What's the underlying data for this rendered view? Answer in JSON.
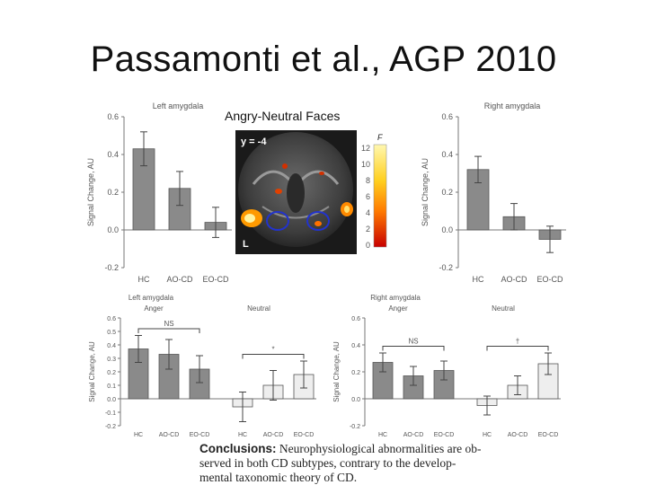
{
  "slide": {
    "title": "Passamonti et al., AGP 2010",
    "subtitle": "Angry-Neutral Faces",
    "conclusion_label": "Conclusions:",
    "conclusion_lines": [
      "Neurophysiological abnormalities are ob-",
      "served in both CD subtypes, contrary to the develop-",
      "mental taxonomic theory of CD."
    ]
  },
  "brain_image": {
    "slice_label": "y = -4",
    "side_label": "L",
    "colorbar_label": "F",
    "colorbar_ticks": [
      "12",
      "10",
      "8",
      "6",
      "4",
      "2",
      "0"
    ]
  },
  "chart_data": [
    {
      "type": "bar",
      "title": "Left amygdala",
      "ylabel": "Signal Change, AU",
      "categories": [
        "HC",
        "AO-CD",
        "EO-CD"
      ],
      "values": [
        0.43,
        0.22,
        0.04
      ],
      "errors": [
        0.09,
        0.09,
        0.08
      ],
      "ylim": [
        -0.2,
        0.6
      ],
      "yticks": [
        "0.6",
        "0.4",
        "0.2",
        "0.0",
        "-0.2"
      ],
      "bar_color": "#8a8a8a"
    },
    {
      "type": "bar",
      "title": "Right amygdala",
      "ylabel": "Signal Change, AU",
      "categories": [
        "HC",
        "AO-CD",
        "EO-CD"
      ],
      "values": [
        0.32,
        0.07,
        -0.05
      ],
      "errors": [
        0.07,
        0.07,
        0.07
      ],
      "ylim": [
        -0.2,
        0.6
      ],
      "yticks": [
        "0.6",
        "0.4",
        "0.2",
        "0.0",
        "-0.2"
      ],
      "bar_color": "#8a8a8a"
    },
    {
      "type": "bar",
      "title": "Left amygdala",
      "ylabel": "Signal Change, AU",
      "groups": [
        "Anger",
        "Neutral"
      ],
      "categories": [
        "HC",
        "AO-CD",
        "EO-CD",
        "HC",
        "AO-CD",
        "EO-CD"
      ],
      "values": [
        0.37,
        0.33,
        0.22,
        -0.06,
        0.1,
        0.18
      ],
      "errors": [
        0.1,
        0.11,
        0.1,
        0.11,
        0.11,
        0.1
      ],
      "ylim": [
        -0.2,
        0.6
      ],
      "yticks": [
        "0.6",
        "0.5",
        "0.4",
        "0.3",
        "0.2",
        "0.1",
        "0.0",
        "-0.1",
        "-0.2"
      ],
      "annotations": [
        "NS",
        "*"
      ],
      "bar_colors": [
        "#8a8a8a",
        "#8a8a8a",
        "#8a8a8a",
        "#eeeeee",
        "#eeeeee",
        "#eeeeee"
      ]
    },
    {
      "type": "bar",
      "title": "Right amygdala",
      "ylabel": "Signal Change, AU",
      "groups": [
        "Anger",
        "Neutral"
      ],
      "categories": [
        "HC",
        "AO-CD",
        "EO-CD",
        "HC",
        "AO-CD",
        "EO-CD"
      ],
      "values": [
        0.27,
        0.17,
        0.21,
        -0.05,
        0.1,
        0.26
      ],
      "errors": [
        0.07,
        0.07,
        0.07,
        0.07,
        0.07,
        0.08
      ],
      "ylim": [
        -0.2,
        0.6
      ],
      "yticks": [
        "0.6",
        "0.4",
        "0.2",
        "0.0",
        "-0.2"
      ],
      "annotations": [
        "NS",
        "†"
      ],
      "bar_colors": [
        "#8a8a8a",
        "#8a8a8a",
        "#8a8a8a",
        "#eeeeee",
        "#eeeeee",
        "#eeeeee"
      ]
    }
  ]
}
